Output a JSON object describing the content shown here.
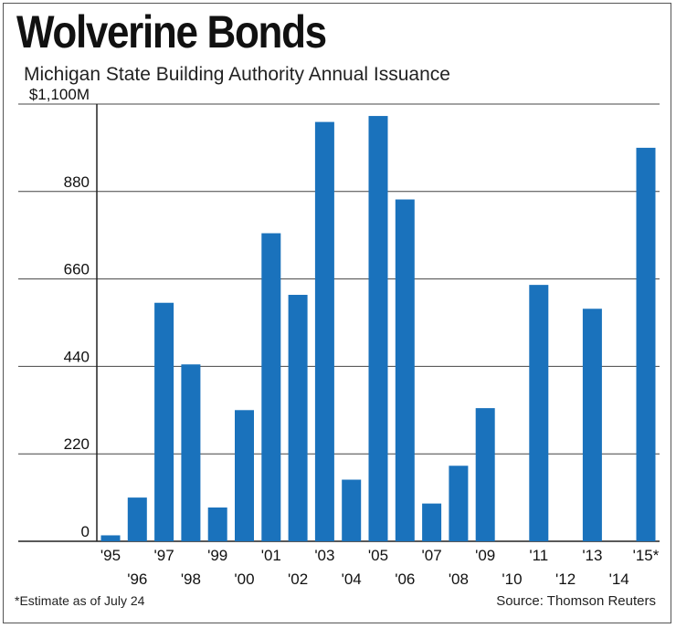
{
  "chart_data": {
    "type": "bar",
    "title": "Wolverine Bonds",
    "subtitle": "Michigan State Building Authority Annual Issuance",
    "categories": [
      "'95",
      "'96",
      "'97",
      "'98",
      "'99",
      "'00",
      "'01",
      "'02",
      "'03",
      "'04",
      "'05",
      "'06",
      "'07",
      "'08",
      "'09",
      "'10",
      "'11",
      "'12",
      "'13",
      "'14",
      "'15*"
    ],
    "values": [
      15,
      110,
      600,
      445,
      85,
      330,
      775,
      620,
      1055,
      155,
      1070,
      860,
      95,
      190,
      335,
      0,
      645,
      0,
      585,
      0,
      990
    ],
    "ylim": [
      0,
      1100
    ],
    "yticks": [
      {
        "value": 0,
        "label": "0"
      },
      {
        "value": 220,
        "label": "220"
      },
      {
        "value": 440,
        "label": "440"
      },
      {
        "value": 660,
        "label": "660"
      },
      {
        "value": 880,
        "label": "880"
      },
      {
        "value": 1100,
        "label": "$1,100M"
      }
    ],
    "grid": true,
    "bar_color": "#1a72bc",
    "footnote": "*Estimate as of July 24",
    "source": "Source: Thomson Reuters"
  }
}
